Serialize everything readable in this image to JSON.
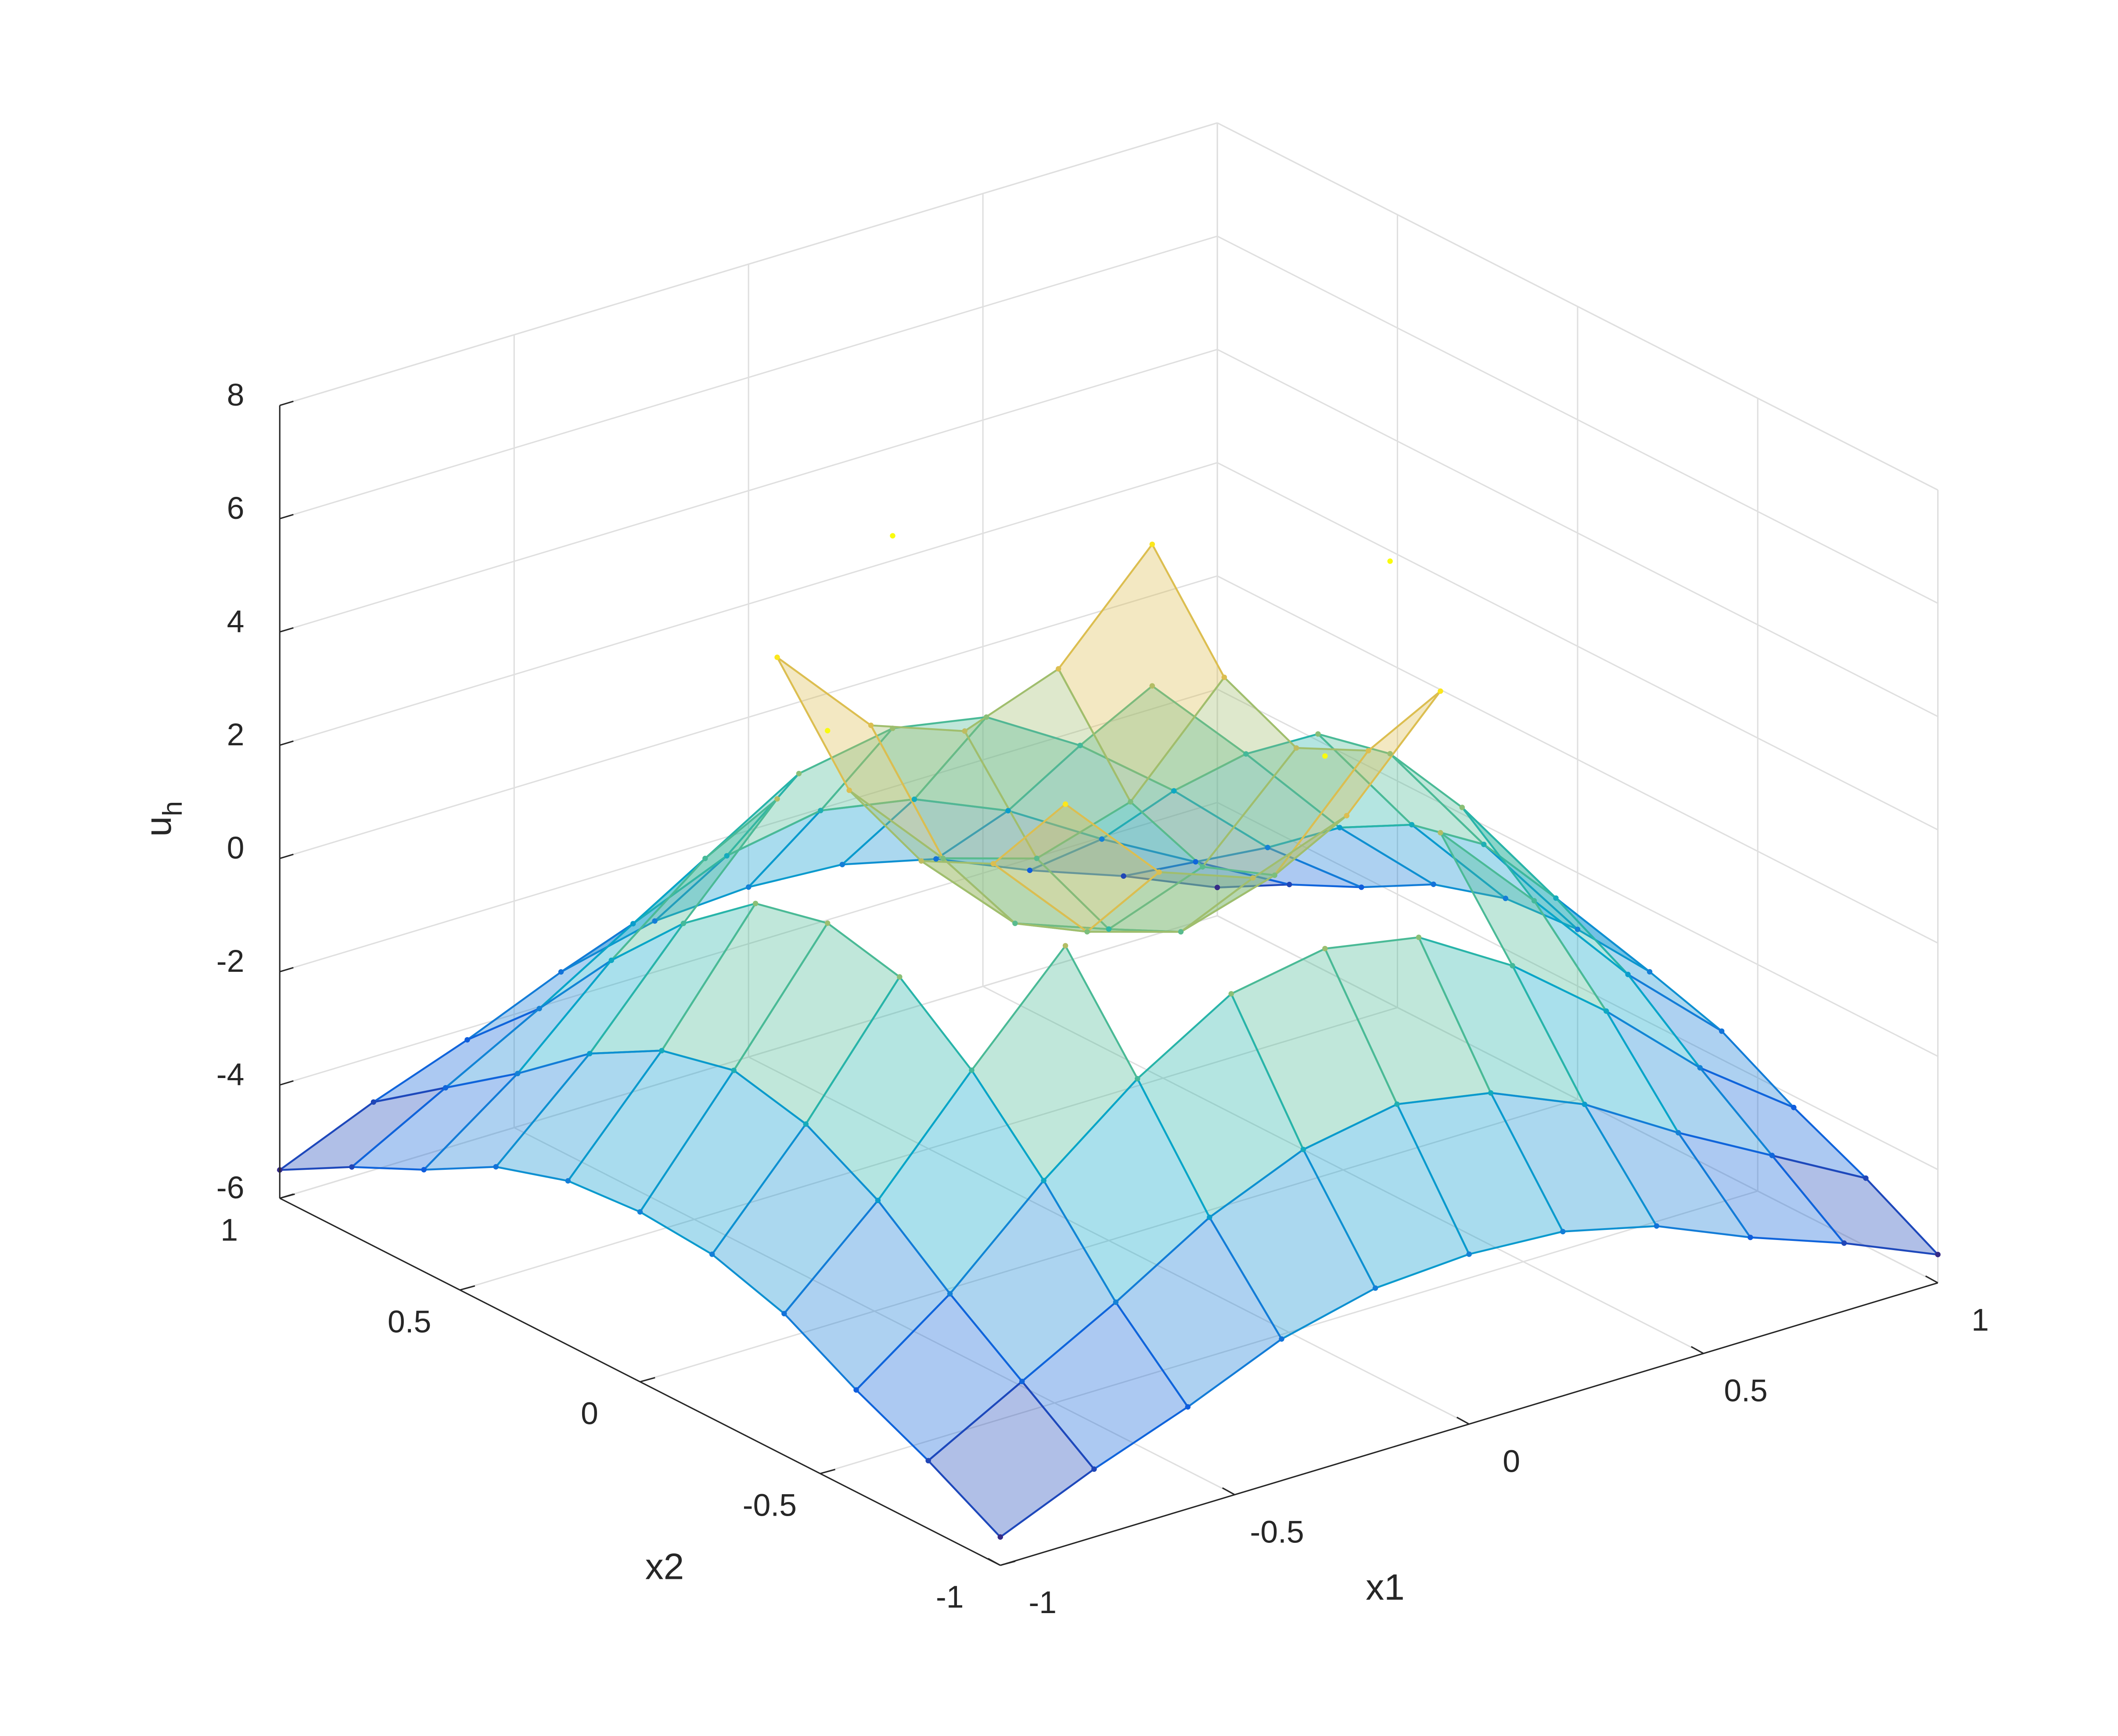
{
  "chart_data": {
    "type": "mesh",
    "xlabel": "x1",
    "ylabel": "x2",
    "zlabel": [
      "u",
      "h"
    ],
    "x": [
      -1,
      -0.8,
      -0.6,
      -0.4,
      -0.2,
      0,
      0.2,
      0.4,
      0.6,
      0.8,
      1
    ],
    "y": [
      -1,
      -0.8,
      -0.6,
      -0.4,
      -0.2,
      0,
      0.2,
      0.4,
      0.6,
      0.8,
      1
    ],
    "series": [
      {
        "values": [
          [
            -5.5,
            -4.8,
            -4.2,
            -3.5,
            -3.1,
            -3.0,
            -3.1,
            -3.5,
            -4.2,
            -4.8,
            -5.5
          ],
          [
            -4.8,
            -3.9,
            -3.0,
            -2.0,
            -1.3,
            -1.0,
            -1.3,
            -2.0,
            -3.0,
            -3.9,
            -4.8
          ],
          [
            -4.2,
            -3.0,
            -1.5,
            -0.2,
            0.8,
            1.1,
            0.8,
            -0.2,
            -1.5,
            -3.0,
            -4.2
          ],
          [
            -3.5,
            -2.0,
            -0.2,
            1.5,
            null,
            null,
            null,
            1.5,
            -0.2,
            -2.0,
            -3.5
          ],
          [
            -3.1,
            -1.3,
            0.8,
            null,
            null,
            null,
            null,
            null,
            0.8,
            -1.3,
            -3.1
          ],
          [
            -3.0,
            -1.0,
            1.1,
            null,
            null,
            null,
            null,
            null,
            1.1,
            -1.0,
            -3.0
          ],
          [
            -3.1,
            -1.3,
            0.8,
            null,
            null,
            null,
            null,
            null,
            0.8,
            -1.3,
            -3.1
          ],
          [
            -3.5,
            -2.0,
            -0.2,
            1.5,
            null,
            null,
            null,
            1.5,
            -0.2,
            -2.0,
            -3.5
          ],
          [
            -4.2,
            -3.0,
            -1.5,
            -0.2,
            0.8,
            1.1,
            0.8,
            -0.2,
            -1.5,
            -3.0,
            -4.2
          ],
          [
            -4.8,
            -3.9,
            -3.0,
            -2.0,
            -1.3,
            -1.0,
            -1.3,
            -2.0,
            -3.0,
            -3.9,
            -4.8
          ],
          [
            -5.5,
            -4.8,
            -4.2,
            -3.5,
            -3.1,
            -3.0,
            -3.1,
            -3.5,
            -4.2,
            -4.8,
            -5.5
          ]
        ]
      },
      {
        "values": [
          [
            null,
            null,
            null,
            null,
            null,
            null,
            null,
            null,
            null,
            null,
            null
          ],
          [
            null,
            null,
            null,
            null,
            null,
            null,
            null,
            null,
            null,
            null,
            null
          ],
          [
            null,
            null,
            null,
            null,
            null,
            4.5,
            null,
            null,
            null,
            null,
            null
          ],
          [
            null,
            null,
            null,
            4.0,
            2.3,
            1.7,
            2.3,
            4.0,
            null,
            null,
            null
          ],
          [
            null,
            null,
            null,
            2.3,
            0.6,
            0.1,
            0.6,
            2.3,
            null,
            null,
            null
          ],
          [
            null,
            null,
            4.5,
            1.7,
            0.1,
            -0.5,
            0.1,
            1.7,
            4.5,
            null,
            null
          ],
          [
            null,
            null,
            null,
            2.3,
            0.6,
            0.1,
            0.6,
            2.3,
            null,
            null,
            null
          ],
          [
            null,
            null,
            null,
            4.0,
            2.3,
            1.7,
            2.3,
            4.0,
            null,
            null,
            null
          ],
          [
            null,
            null,
            null,
            null,
            null,
            4.5,
            null,
            null,
            null,
            null,
            null
          ],
          [
            null,
            null,
            null,
            null,
            null,
            null,
            null,
            null,
            null,
            null,
            null
          ],
          [
            null,
            null,
            null,
            null,
            null,
            null,
            null,
            null,
            null,
            null,
            null
          ]
        ]
      }
    ],
    "xlim": [
      -1,
      1
    ],
    "ylim": [
      -1,
      1
    ],
    "zlim": [
      -6,
      8
    ],
    "xticks": [
      -1,
      -0.5,
      0,
      0.5,
      1
    ],
    "yticks": [
      -1,
      -0.5,
      0,
      0.5,
      1
    ],
    "zticks": [
      -6,
      -4,
      -2,
      0,
      2,
      4,
      6,
      8
    ],
    "grid": true,
    "colormap": [
      "#352a87",
      "#0f5cdd",
      "#1481d6",
      "#06a4ca",
      "#2eb7a4",
      "#87bf77",
      "#d1bb59",
      "#fec832",
      "#f9fb0e"
    ]
  }
}
